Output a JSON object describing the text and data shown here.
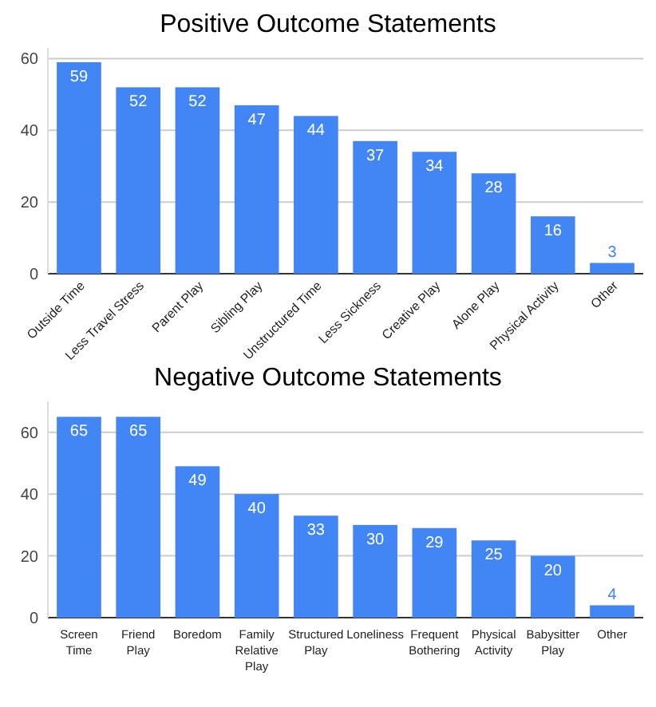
{
  "chart_data": [
    {
      "type": "bar",
      "title": "Positive Outcome Statements",
      "categories": [
        "Outside Time",
        "Less Travel Stress",
        "Parent Play",
        "Sibling Play",
        "Unstructured Time",
        "Less Sickness",
        "Creative Play",
        "Alone Play",
        "Physical Activity",
        "Other"
      ],
      "values": [
        59,
        52,
        52,
        47,
        44,
        37,
        34,
        28,
        16,
        3
      ],
      "color": "#4285f4",
      "ylim": [
        0,
        63
      ],
      "yticks": [
        0,
        20,
        40,
        60
      ],
      "grid": "y",
      "data_labels": true
    },
    {
      "type": "bar",
      "title": "Negative Outcome Statements",
      "categories": [
        "Screen Time",
        "Friend Play",
        "Boredom",
        "Family Relative Play",
        "Structured Play",
        "Loneliness",
        "Frequent Bothering",
        "Physical Activity",
        "Babysitter Play",
        "Other"
      ],
      "values": [
        65,
        65,
        49,
        40,
        33,
        30,
        29,
        25,
        20,
        4
      ],
      "color": "#4285f4",
      "ylim": [
        0,
        70
      ],
      "yticks": [
        0,
        20,
        40,
        60
      ],
      "grid": "y",
      "data_labels": true
    }
  ]
}
